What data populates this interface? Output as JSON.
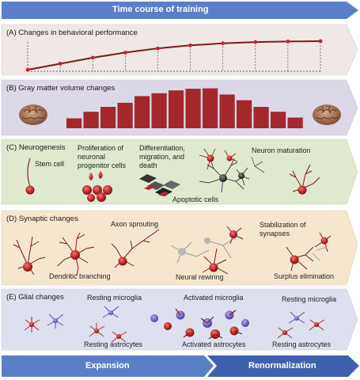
{
  "title": "Time course of training",
  "panels": {
    "a": {
      "header": "(A) Changes in behavioral performance"
    },
    "b": {
      "header": "(B) Gray matter volume changes"
    },
    "c": {
      "header": "(C) Neurogenesis",
      "labels": {
        "stem_cell": "Stem cell",
        "prolif_1": "Proliferation of",
        "prolif_2": "neuronal",
        "prolif_3": "progenitor cells",
        "diff_1": "Differentiation,",
        "diff_2": "migration, and",
        "diff_3": "death",
        "apoptotic": "Apoptotic cells",
        "maturation": "Neuron maturation"
      }
    },
    "d": {
      "header": "(D) Synaptic changes",
      "labels": {
        "axon": "Axon sprouting",
        "stab_1": "Stabilization of",
        "stab_2": "synapses",
        "dendritic": "Dendritic branching",
        "rewiring": "Neural rewiring",
        "surplus": "Surplus elimination"
      }
    },
    "e": {
      "header": "(E) Glial changes",
      "labels": {
        "rest_micro_1": "Resting microglia",
        "act_micro": "Activated microglia",
        "rest_micro_2": "Resting microglia",
        "rest_astro_1": "Resting astrocytes",
        "act_astro": "Activated astrocytes",
        "rest_astro_2": "Resting astrocytes"
      }
    }
  },
  "footer": {
    "expansion": "Expansion",
    "renormalization": "Renormalization"
  },
  "chart_data": [
    {
      "type": "line",
      "series": [
        {
          "values": [
            0.05,
            0.25,
            0.45,
            0.62,
            0.76,
            0.86,
            0.93,
            0.97,
            0.99,
            1.0
          ]
        }
      ]
    },
    {
      "type": "bar",
      "values": [
        0.24,
        0.4,
        0.52,
        0.62,
        0.78,
        0.85,
        0.92,
        0.96,
        0.97,
        0.82,
        0.68,
        0.52,
        0.4,
        0.26
      ]
    }
  ],
  "colors": {
    "title_arrow": "#5b7fc7",
    "panel_a": "#efe8e6",
    "panel_b": "#ddd8e8",
    "panel_c": "#dfe9cf",
    "panel_d": "#f6e6cf",
    "panel_e": "#dde1ef",
    "bars": "#a3272b",
    "footer_left": "#5b7fc7",
    "footer_right": "#3f61ad",
    "cell_red": "#b8262a"
  },
  "icons": [
    "brain-icon",
    "neuron-icon",
    "microglia-icon",
    "astrocyte-icon"
  ]
}
